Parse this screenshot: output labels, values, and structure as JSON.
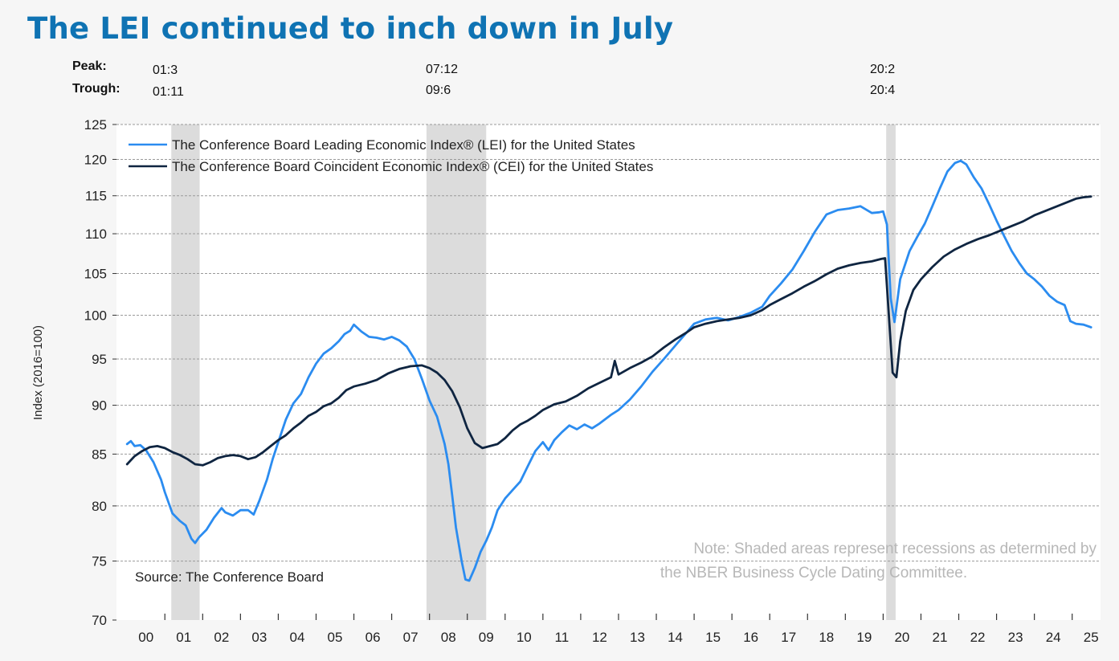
{
  "page_title": "The LEI continued to inch down in July",
  "recession_table": {
    "peak_label": "Peak:",
    "trough_label": "Trough:",
    "peaks": [
      "01:3",
      "07:12",
      "20:2"
    ],
    "troughs": [
      "01:11",
      "09:6",
      "20:4"
    ]
  },
  "colors": {
    "lei": "#2b8cf0",
    "cei": "#0f2541",
    "recession": "#dcdcdc",
    "title": "#0f73b3"
  },
  "chart_data": {
    "type": "line",
    "title": "",
    "xlabel": "",
    "ylabel": "Index (2016=100)",
    "y_scale": "log",
    "ylim": [
      70,
      125
    ],
    "xlim": [
      2000.0,
      2025.75
    ],
    "yticks": [
      70,
      75,
      80,
      85,
      90,
      95,
      100,
      105,
      110,
      115,
      120,
      125
    ],
    "xticks": [
      {
        "label": "00",
        "x": 2000
      },
      {
        "label": "01",
        "x": 2001
      },
      {
        "label": "02",
        "x": 2002
      },
      {
        "label": "03",
        "x": 2003
      },
      {
        "label": "04",
        "x": 2004
      },
      {
        "label": "05",
        "x": 2005
      },
      {
        "label": "06",
        "x": 2006
      },
      {
        "label": "07",
        "x": 2007
      },
      {
        "label": "08",
        "x": 2008
      },
      {
        "label": "09",
        "x": 2009
      },
      {
        "label": "10",
        "x": 2010
      },
      {
        "label": "11",
        "x": 2011
      },
      {
        "label": "12",
        "x": 2012
      },
      {
        "label": "13",
        "x": 2013
      },
      {
        "label": "14",
        "x": 2014
      },
      {
        "label": "15",
        "x": 2015
      },
      {
        "label": "16",
        "x": 2016
      },
      {
        "label": "17",
        "x": 2017
      },
      {
        "label": "18",
        "x": 2018
      },
      {
        "label": "19",
        "x": 2019
      },
      {
        "label": "20",
        "x": 2020
      },
      {
        "label": "21",
        "x": 2021
      },
      {
        "label": "22",
        "x": 2022
      },
      {
        "label": "23",
        "x": 2023
      },
      {
        "label": "24",
        "x": 2024
      },
      {
        "label": "25",
        "x": 2025
      }
    ],
    "recessions": [
      {
        "start": 2001.17,
        "end": 2001.92
      },
      {
        "start": 2007.92,
        "end": 2009.5
      },
      {
        "start": 2020.08,
        "end": 2020.33
      }
    ],
    "legend": [
      {
        "name": "The Conference Board Leading Economic Index® (LEI) for the United States",
        "series": "lei"
      },
      {
        "name": "The Conference Board Coincident Economic Index® (CEI) for the United States",
        "series": "cei"
      }
    ],
    "annotations": {
      "source": "Source: The Conference Board",
      "note_line1": "Note: Shaded areas represent recessions as determined by",
      "note_line2": "the NBER Business Cycle Dating Committee."
    },
    "series": [
      {
        "key": "lei",
        "name": "LEI",
        "points": [
          [
            2000.0,
            86.0
          ],
          [
            2000.1,
            86.3
          ],
          [
            2000.2,
            85.8
          ],
          [
            2000.35,
            85.9
          ],
          [
            2000.5,
            85.4
          ],
          [
            2000.7,
            84.2
          ],
          [
            2000.9,
            82.5
          ],
          [
            2001.0,
            81.3
          ],
          [
            2001.2,
            79.3
          ],
          [
            2001.4,
            78.6
          ],
          [
            2001.55,
            78.2
          ],
          [
            2001.7,
            77.0
          ],
          [
            2001.8,
            76.6
          ],
          [
            2001.9,
            77.1
          ],
          [
            2002.1,
            77.8
          ],
          [
            2002.3,
            78.9
          ],
          [
            2002.5,
            79.8
          ],
          [
            2002.6,
            79.4
          ],
          [
            2002.8,
            79.1
          ],
          [
            2003.0,
            79.6
          ],
          [
            2003.2,
            79.6
          ],
          [
            2003.35,
            79.2
          ],
          [
            2003.5,
            80.5
          ],
          [
            2003.7,
            82.5
          ],
          [
            2003.85,
            84.5
          ],
          [
            2004.0,
            86.2
          ],
          [
            2004.2,
            88.5
          ],
          [
            2004.4,
            90.2
          ],
          [
            2004.6,
            91.2
          ],
          [
            2004.8,
            93.0
          ],
          [
            2005.0,
            94.5
          ],
          [
            2005.2,
            95.6
          ],
          [
            2005.4,
            96.2
          ],
          [
            2005.6,
            97.0
          ],
          [
            2005.75,
            97.8
          ],
          [
            2005.9,
            98.2
          ],
          [
            2006.0,
            98.9
          ],
          [
            2006.2,
            98.1
          ],
          [
            2006.4,
            97.5
          ],
          [
            2006.6,
            97.4
          ],
          [
            2006.8,
            97.2
          ],
          [
            2007.0,
            97.5
          ],
          [
            2007.2,
            97.1
          ],
          [
            2007.4,
            96.4
          ],
          [
            2007.6,
            95.0
          ],
          [
            2007.8,
            92.8
          ],
          [
            2008.0,
            90.5
          ],
          [
            2008.2,
            88.8
          ],
          [
            2008.4,
            86.0
          ],
          [
            2008.5,
            84.0
          ],
          [
            2008.6,
            81.0
          ],
          [
            2008.7,
            78.0
          ],
          [
            2008.85,
            75.0
          ],
          [
            2008.95,
            73.4
          ],
          [
            2009.05,
            73.3
          ],
          [
            2009.2,
            74.4
          ],
          [
            2009.35,
            75.8
          ],
          [
            2009.5,
            76.8
          ],
          [
            2009.65,
            78.0
          ],
          [
            2009.8,
            79.6
          ],
          [
            2010.0,
            80.7
          ],
          [
            2010.2,
            81.5
          ],
          [
            2010.4,
            82.3
          ],
          [
            2010.6,
            83.8
          ],
          [
            2010.8,
            85.3
          ],
          [
            2011.0,
            86.2
          ],
          [
            2011.15,
            85.4
          ],
          [
            2011.3,
            86.4
          ],
          [
            2011.5,
            87.2
          ],
          [
            2011.7,
            87.9
          ],
          [
            2011.9,
            87.5
          ],
          [
            2012.1,
            88.0
          ],
          [
            2012.3,
            87.6
          ],
          [
            2012.5,
            88.1
          ],
          [
            2012.8,
            89.0
          ],
          [
            2013.0,
            89.5
          ],
          [
            2013.3,
            90.6
          ],
          [
            2013.6,
            92.0
          ],
          [
            2013.9,
            93.6
          ],
          [
            2014.2,
            95.0
          ],
          [
            2014.5,
            96.5
          ],
          [
            2014.8,
            98.0
          ],
          [
            2015.0,
            99.0
          ],
          [
            2015.3,
            99.5
          ],
          [
            2015.6,
            99.7
          ],
          [
            2015.9,
            99.4
          ],
          [
            2016.2,
            99.8
          ],
          [
            2016.5,
            100.3
          ],
          [
            2016.8,
            101.0
          ],
          [
            2017.0,
            102.3
          ],
          [
            2017.3,
            103.8
          ],
          [
            2017.6,
            105.5
          ],
          [
            2017.9,
            107.8
          ],
          [
            2018.2,
            110.3
          ],
          [
            2018.5,
            112.5
          ],
          [
            2018.8,
            113.1
          ],
          [
            2019.1,
            113.3
          ],
          [
            2019.4,
            113.6
          ],
          [
            2019.7,
            112.7
          ],
          [
            2019.9,
            112.8
          ],
          [
            2020.0,
            112.9
          ],
          [
            2020.1,
            111.2
          ],
          [
            2020.2,
            102.0
          ],
          [
            2020.3,
            99.2
          ],
          [
            2020.45,
            104.3
          ],
          [
            2020.7,
            107.8
          ],
          [
            2020.9,
            109.6
          ],
          [
            2021.1,
            111.3
          ],
          [
            2021.3,
            113.6
          ],
          [
            2021.5,
            116.0
          ],
          [
            2021.7,
            118.3
          ],
          [
            2021.9,
            119.5
          ],
          [
            2022.05,
            119.8
          ],
          [
            2022.2,
            119.3
          ],
          [
            2022.4,
            117.5
          ],
          [
            2022.6,
            116.0
          ],
          [
            2022.8,
            113.9
          ],
          [
            2023.0,
            111.7
          ],
          [
            2023.2,
            109.7
          ],
          [
            2023.4,
            107.8
          ],
          [
            2023.6,
            106.3
          ],
          [
            2023.8,
            105.0
          ],
          [
            2024.0,
            104.3
          ],
          [
            2024.2,
            103.4
          ],
          [
            2024.4,
            102.3
          ],
          [
            2024.6,
            101.6
          ],
          [
            2024.8,
            101.2
          ],
          [
            2024.95,
            99.3
          ],
          [
            2025.1,
            99.0
          ],
          [
            2025.3,
            98.9
          ],
          [
            2025.5,
            98.6
          ]
        ]
      },
      {
        "key": "cei",
        "name": "CEI",
        "points": [
          [
            2000.0,
            84.0
          ],
          [
            2000.2,
            84.8
          ],
          [
            2000.4,
            85.3
          ],
          [
            2000.6,
            85.7
          ],
          [
            2000.8,
            85.8
          ],
          [
            2001.0,
            85.6
          ],
          [
            2001.2,
            85.2
          ],
          [
            2001.4,
            84.9
          ],
          [
            2001.6,
            84.5
          ],
          [
            2001.8,
            84.0
          ],
          [
            2002.0,
            83.9
          ],
          [
            2002.2,
            84.2
          ],
          [
            2002.4,
            84.6
          ],
          [
            2002.6,
            84.8
          ],
          [
            2002.8,
            84.9
          ],
          [
            2003.0,
            84.8
          ],
          [
            2003.2,
            84.5
          ],
          [
            2003.4,
            84.7
          ],
          [
            2003.6,
            85.2
          ],
          [
            2003.8,
            85.8
          ],
          [
            2004.0,
            86.4
          ],
          [
            2004.2,
            86.9
          ],
          [
            2004.4,
            87.6
          ],
          [
            2004.6,
            88.2
          ],
          [
            2004.8,
            88.9
          ],
          [
            2005.0,
            89.3
          ],
          [
            2005.2,
            89.9
          ],
          [
            2005.4,
            90.2
          ],
          [
            2005.6,
            90.8
          ],
          [
            2005.8,
            91.6
          ],
          [
            2006.0,
            92.0
          ],
          [
            2006.3,
            92.3
          ],
          [
            2006.6,
            92.7
          ],
          [
            2006.9,
            93.4
          ],
          [
            2007.2,
            93.9
          ],
          [
            2007.5,
            94.2
          ],
          [
            2007.8,
            94.3
          ],
          [
            2008.0,
            94.0
          ],
          [
            2008.2,
            93.5
          ],
          [
            2008.4,
            92.7
          ],
          [
            2008.6,
            91.5
          ],
          [
            2008.8,
            89.8
          ],
          [
            2009.0,
            87.6
          ],
          [
            2009.2,
            86.1
          ],
          [
            2009.4,
            85.6
          ],
          [
            2009.6,
            85.8
          ],
          [
            2009.8,
            86.0
          ],
          [
            2010.0,
            86.6
          ],
          [
            2010.2,
            87.4
          ],
          [
            2010.4,
            88.0
          ],
          [
            2010.6,
            88.4
          ],
          [
            2010.8,
            88.9
          ],
          [
            2011.0,
            89.5
          ],
          [
            2011.3,
            90.1
          ],
          [
            2011.6,
            90.4
          ],
          [
            2011.9,
            91.0
          ],
          [
            2012.2,
            91.8
          ],
          [
            2012.5,
            92.4
          ],
          [
            2012.8,
            93.0
          ],
          [
            2012.9,
            94.8
          ],
          [
            2013.0,
            93.3
          ],
          [
            2013.3,
            94.0
          ],
          [
            2013.6,
            94.6
          ],
          [
            2013.9,
            95.3
          ],
          [
            2014.2,
            96.3
          ],
          [
            2014.5,
            97.2
          ],
          [
            2014.8,
            98.0
          ],
          [
            2015.0,
            98.6
          ],
          [
            2015.3,
            99.0
          ],
          [
            2015.6,
            99.3
          ],
          [
            2015.9,
            99.5
          ],
          [
            2016.2,
            99.7
          ],
          [
            2016.5,
            100.0
          ],
          [
            2016.8,
            100.6
          ],
          [
            2017.0,
            101.2
          ],
          [
            2017.3,
            101.9
          ],
          [
            2017.6,
            102.6
          ],
          [
            2017.9,
            103.4
          ],
          [
            2018.2,
            104.1
          ],
          [
            2018.5,
            104.9
          ],
          [
            2018.8,
            105.6
          ],
          [
            2019.1,
            106.0
          ],
          [
            2019.4,
            106.3
          ],
          [
            2019.7,
            106.5
          ],
          [
            2019.95,
            106.8
          ],
          [
            2020.05,
            106.9
          ],
          [
            2020.15,
            100.0
          ],
          [
            2020.25,
            93.5
          ],
          [
            2020.35,
            93.0
          ],
          [
            2020.45,
            97.0
          ],
          [
            2020.6,
            100.5
          ],
          [
            2020.8,
            103.0
          ],
          [
            2021.0,
            104.3
          ],
          [
            2021.3,
            105.8
          ],
          [
            2021.6,
            107.1
          ],
          [
            2021.9,
            108.0
          ],
          [
            2022.2,
            108.7
          ],
          [
            2022.5,
            109.3
          ],
          [
            2022.8,
            109.8
          ],
          [
            2023.1,
            110.4
          ],
          [
            2023.4,
            111.0
          ],
          [
            2023.7,
            111.6
          ],
          [
            2024.0,
            112.4
          ],
          [
            2024.3,
            113.0
          ],
          [
            2024.6,
            113.6
          ],
          [
            2024.9,
            114.2
          ],
          [
            2025.1,
            114.6
          ],
          [
            2025.3,
            114.8
          ],
          [
            2025.5,
            114.9
          ]
        ]
      }
    ]
  }
}
